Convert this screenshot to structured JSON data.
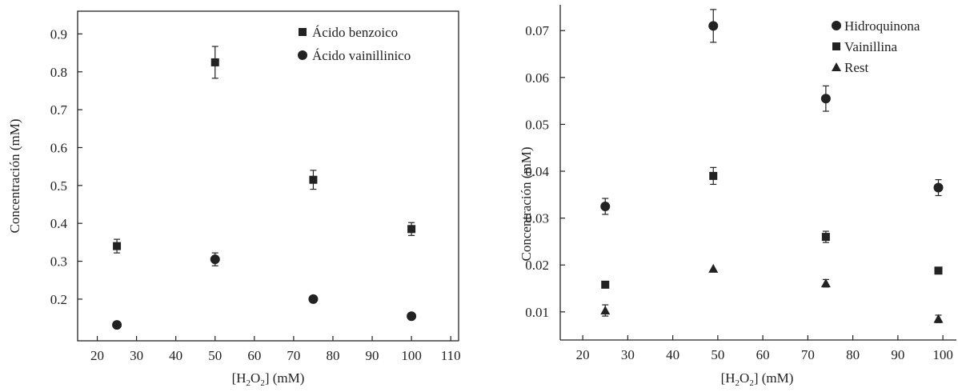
{
  "chart_data": [
    {
      "type": "scatter",
      "xlabel_parts": [
        "[H",
        "2",
        "O",
        "2",
        "] (mM)"
      ],
      "ylabel": "Concentración (mM)",
      "xlim": [
        15,
        112
      ],
      "ylim": [
        0.09,
        0.96
      ],
      "xticks": [
        20,
        30,
        40,
        50,
        60,
        70,
        80,
        90,
        100,
        110
      ],
      "yticks": [
        0.2,
        0.3,
        0.4,
        0.5,
        0.6,
        0.7,
        0.8,
        0.9
      ],
      "ytick_labels": [
        "0.2",
        "0.3",
        "0.4",
        "0.5",
        "0.6",
        "0.7",
        "0.8",
        "0.9"
      ],
      "legend_position": "top-right",
      "series": [
        {
          "name": "Ácido benzoico",
          "marker": "square",
          "x": [
            25,
            50,
            75,
            100
          ],
          "y": [
            0.34,
            0.825,
            0.515,
            0.385
          ],
          "err": [
            0.018,
            0.042,
            0.025,
            0.017
          ]
        },
        {
          "name": "Ácido vainillinico",
          "marker": "circle",
          "x": [
            25,
            50,
            75,
            100
          ],
          "y": [
            0.132,
            0.305,
            0.2,
            0.155
          ],
          "err": [
            0,
            0.017,
            0,
            0
          ]
        }
      ]
    },
    {
      "type": "scatter",
      "xlabel_parts": [
        "[H",
        "2",
        "O",
        "2",
        "] (mM)"
      ],
      "ylabel": "Concentración (mM)",
      "xlim": [
        15,
        103
      ],
      "ylim": [
        0.004,
        0.0755
      ],
      "xticks": [
        20,
        30,
        40,
        50,
        60,
        70,
        80,
        90,
        100
      ],
      "yticks": [
        0.01,
        0.02,
        0.03,
        0.04,
        0.05,
        0.06,
        0.07
      ],
      "ytick_labels": [
        "0.01",
        "0.02",
        "0.03",
        "0.04",
        "0.05",
        "0.06",
        "0.07"
      ],
      "legend_position": "top-right",
      "series": [
        {
          "name": "Hidroquinona",
          "marker": "circle",
          "x": [
            25,
            49,
            74,
            99
          ],
          "y": [
            0.0325,
            0.071,
            0.0555,
            0.0365
          ],
          "err": [
            0.0017,
            0.0035,
            0.0027,
            0.0017
          ]
        },
        {
          "name": "Vainillina",
          "marker": "square",
          "x": [
            25,
            49,
            74,
            99
          ],
          "y": [
            0.0158,
            0.039,
            0.026,
            0.0188
          ],
          "err": [
            0,
            0.0018,
            0.0012,
            0
          ]
        },
        {
          "name": "Rest",
          "marker": "triangle",
          "x": [
            25,
            49,
            74,
            99
          ],
          "y": [
            0.0103,
            0.0192,
            0.0161,
            0.0085
          ],
          "err": [
            0.0012,
            0,
            0.0008,
            0.0008
          ]
        }
      ]
    }
  ]
}
